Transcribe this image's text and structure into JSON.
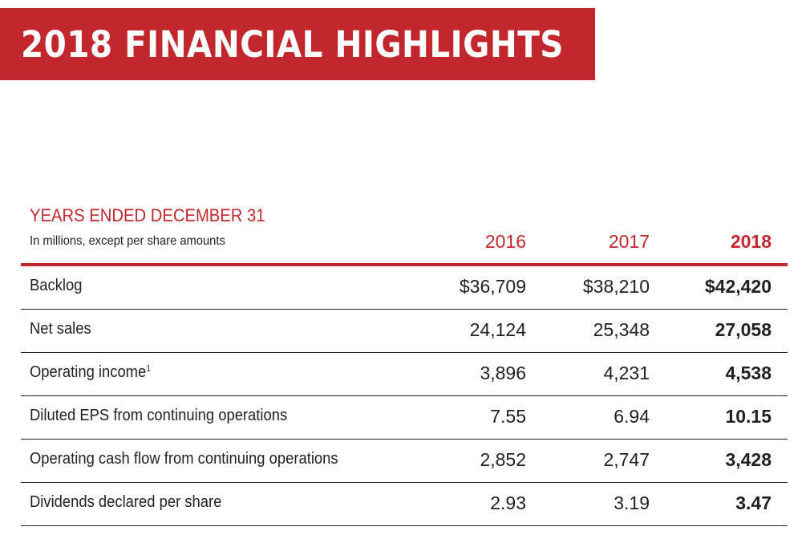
{
  "banner": {
    "title": "2018 FINANCIAL HIGHLIGHTS"
  },
  "table": {
    "section_title": "YEARS ENDED DECEMBER 31",
    "section_subtitle": "In millions, except per share amounts",
    "years": [
      "2016",
      "2017",
      "2018"
    ],
    "rows": [
      {
        "label": "Backlog",
        "footnote": "",
        "values": [
          "$36,709",
          "$38,210",
          "$42,420"
        ]
      },
      {
        "label": "Net sales",
        "footnote": "",
        "values": [
          "24,124",
          "25,348",
          "27,058"
        ]
      },
      {
        "label": "Operating income",
        "footnote": "1",
        "values": [
          "3,896",
          "4,231",
          "4,538"
        ]
      },
      {
        "label": "Diluted EPS from continuing operations",
        "footnote": "",
        "values": [
          "7.55",
          "6.94",
          "10.15"
        ]
      },
      {
        "label": "Operating cash flow from continuing operations",
        "footnote": "",
        "values": [
          "2,852",
          "2,747",
          "3,428"
        ]
      },
      {
        "label": "Dividends declared per share",
        "footnote": "",
        "values": [
          "2.93",
          "3.19",
          "3.47"
        ]
      }
    ]
  },
  "colors": {
    "accent_red": "#c1272d",
    "text": "#231f20",
    "background": "#ffffff"
  }
}
